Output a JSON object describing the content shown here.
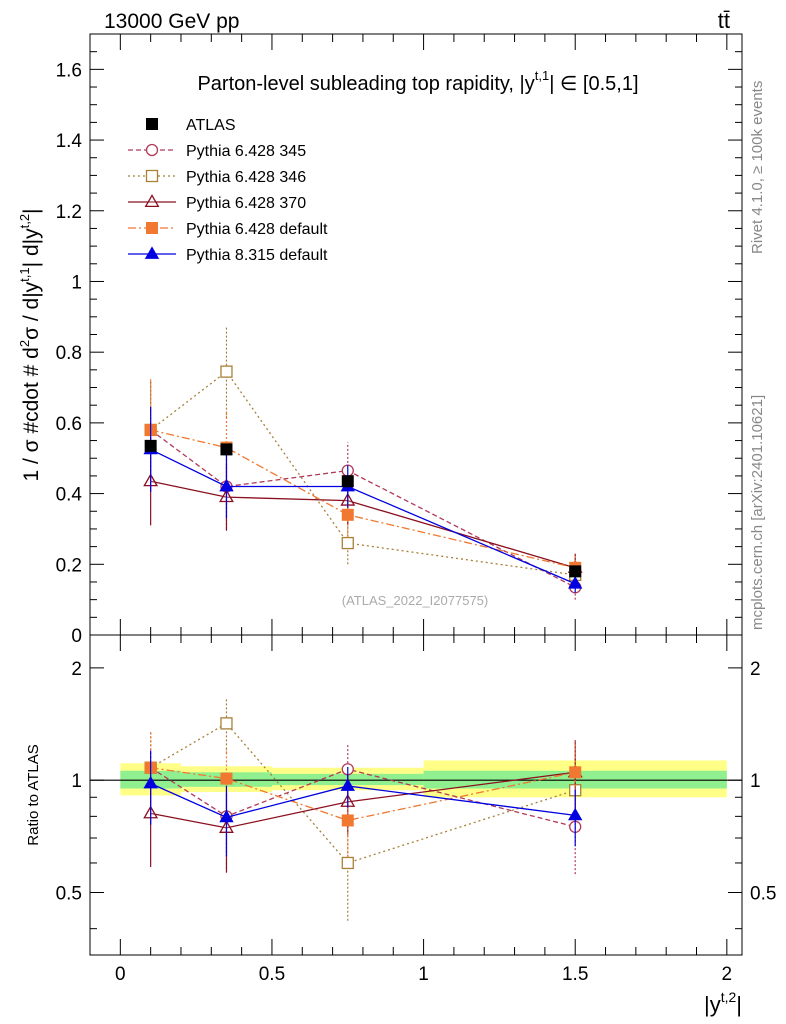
{
  "header": {
    "energy_label": "13000 GeV pp",
    "process_label": "tt̄"
  },
  "side_labels": {
    "rivet": "Rivet 4.1.0, ≥ 100k events",
    "mcplots": "mcplots.cern.ch [arXiv:2401.10621]"
  },
  "chart_data": {
    "type": "line",
    "title": "Parton-level subleading top rapidity, |y",
    "title_sup": "t,1",
    "title_tail": "| ∈ [0.5,1]",
    "watermark": "(ATLAS_2022_I2077575)",
    "ylabel": "1 / σ #cdot # d²σ / d|y^t,1| d|y^t,2|",
    "ylabel_parts": [
      "1 / σ #cdot # d",
      "2",
      "σ / d|y",
      "t,1",
      "| d|y",
      "t,2",
      "|"
    ],
    "xlabel_main": "|y",
    "xlabel_sup": "t,2",
    "xlabel_tail": "|",
    "ratio_ylabel": "Ratio to ATLAS",
    "xlim": [
      -0.1,
      2.05
    ],
    "ylim": [
      0,
      1.7
    ],
    "ratio_ylim": [
      0.34,
      2.45
    ],
    "x_ticks": [
      "0",
      "0.5",
      "1",
      "1.5",
      "2"
    ],
    "y_ticks": [
      "0",
      "0.2",
      "0.4",
      "0.6",
      "0.8",
      "1",
      "1.2",
      "1.4",
      "1.6"
    ],
    "ratio_ticks": [
      "0.5",
      "1",
      "2"
    ],
    "bins": [
      [
        0,
        0.2
      ],
      [
        0.2,
        0.5
      ],
      [
        0.5,
        1.0
      ],
      [
        1.0,
        2.0
      ]
    ],
    "legend_position": "top-left",
    "bands": [
      {
        "x": [
          0,
          0.2
        ],
        "inner": [
          0.95,
          1.06
        ],
        "outer": [
          0.91,
          1.11
        ]
      },
      {
        "x": [
          0.2,
          0.5
        ],
        "inner": [
          0.96,
          1.05
        ],
        "outer": [
          0.93,
          1.09
        ]
      },
      {
        "x": [
          0.5,
          1.0
        ],
        "inner": [
          0.97,
          1.04
        ],
        "outer": [
          0.94,
          1.08
        ]
      },
      {
        "x": [
          1.0,
          2.0
        ],
        "inner": [
          0.95,
          1.06
        ],
        "outer": [
          0.9,
          1.13
        ]
      }
    ],
    "series": [
      {
        "name": "ATLAS",
        "color": "#000000",
        "marker": "square-filled",
        "dash": "none",
        "x": [
          0.1,
          0.35,
          0.75,
          1.5
        ],
        "y": [
          0.535,
          0.525,
          0.435,
          0.18
        ],
        "err": [
          0,
          0,
          0,
          0
        ],
        "ratio": [
          1,
          1,
          1,
          1
        ],
        "ratio_err": [
          0,
          0,
          0,
          0
        ]
      },
      {
        "name": "Pythia 6.428 345",
        "color": "#b03a5a",
        "marker": "circle-open",
        "dash": "5,3",
        "x": [
          0.1,
          0.35,
          0.75,
          1.5
        ],
        "y": [
          0.58,
          0.42,
          0.465,
          0.135
        ],
        "err": [
          0.14,
          0.12,
          0.08,
          0.035
        ],
        "ratio": [
          1.08,
          0.8,
          1.07,
          0.75
        ],
        "ratio_err": [
          0.27,
          0.22,
          0.18,
          0.19
        ]
      },
      {
        "name": "Pythia 6.428 346",
        "color": "#a88038",
        "marker": "square-open",
        "dash": "2,3",
        "x": [
          0.1,
          0.35,
          0.75,
          1.5
        ],
        "y": [
          0.58,
          0.745,
          0.26,
          0.17
        ],
        "err": [
          0.14,
          0.13,
          0.06,
          0.04
        ],
        "ratio": [
          1.08,
          1.42,
          0.6,
          0.94
        ],
        "ratio_err": [
          0.27,
          0.24,
          0.18,
          0.2
        ]
      },
      {
        "name": "Pythia 6.428 370",
        "color": "#8a1020",
        "marker": "triangle-open",
        "dash": "none",
        "x": [
          0.1,
          0.35,
          0.75,
          1.5
        ],
        "y": [
          0.435,
          0.39,
          0.38,
          0.19
        ],
        "err": [
          0.125,
          0.095,
          0.07,
          0.04
        ],
        "ratio": [
          0.815,
          0.745,
          0.875,
          1.05
        ],
        "ratio_err": [
          0.23,
          0.18,
          0.16,
          0.23
        ]
      },
      {
        "name": "Pythia 6.428 default",
        "color": "#f07830",
        "marker": "square-filled",
        "dash": "8,3,2,3",
        "x": [
          0.1,
          0.35,
          0.75,
          1.5
        ],
        "y": [
          0.58,
          0.53,
          0.34,
          0.19
        ],
        "err": [
          0.145,
          0.1,
          0.065,
          0.04
        ],
        "ratio": [
          1.08,
          1.01,
          0.78,
          1.05
        ],
        "ratio_err": [
          0.27,
          0.2,
          0.16,
          0.22
        ]
      },
      {
        "name": "Pythia 8.315 default",
        "color": "#0000e0",
        "marker": "triangle-filled",
        "dash": "none",
        "x": [
          0.1,
          0.35,
          0.75,
          1.5
        ],
        "y": [
          0.525,
          0.42,
          0.42,
          0.145
        ],
        "err": [
          0.12,
          0.09,
          0.06,
          0.025
        ],
        "ratio": [
          0.98,
          0.795,
          0.965,
          0.805
        ],
        "ratio_err": [
          0.22,
          0.17,
          0.12,
          0.14
        ]
      }
    ]
  }
}
